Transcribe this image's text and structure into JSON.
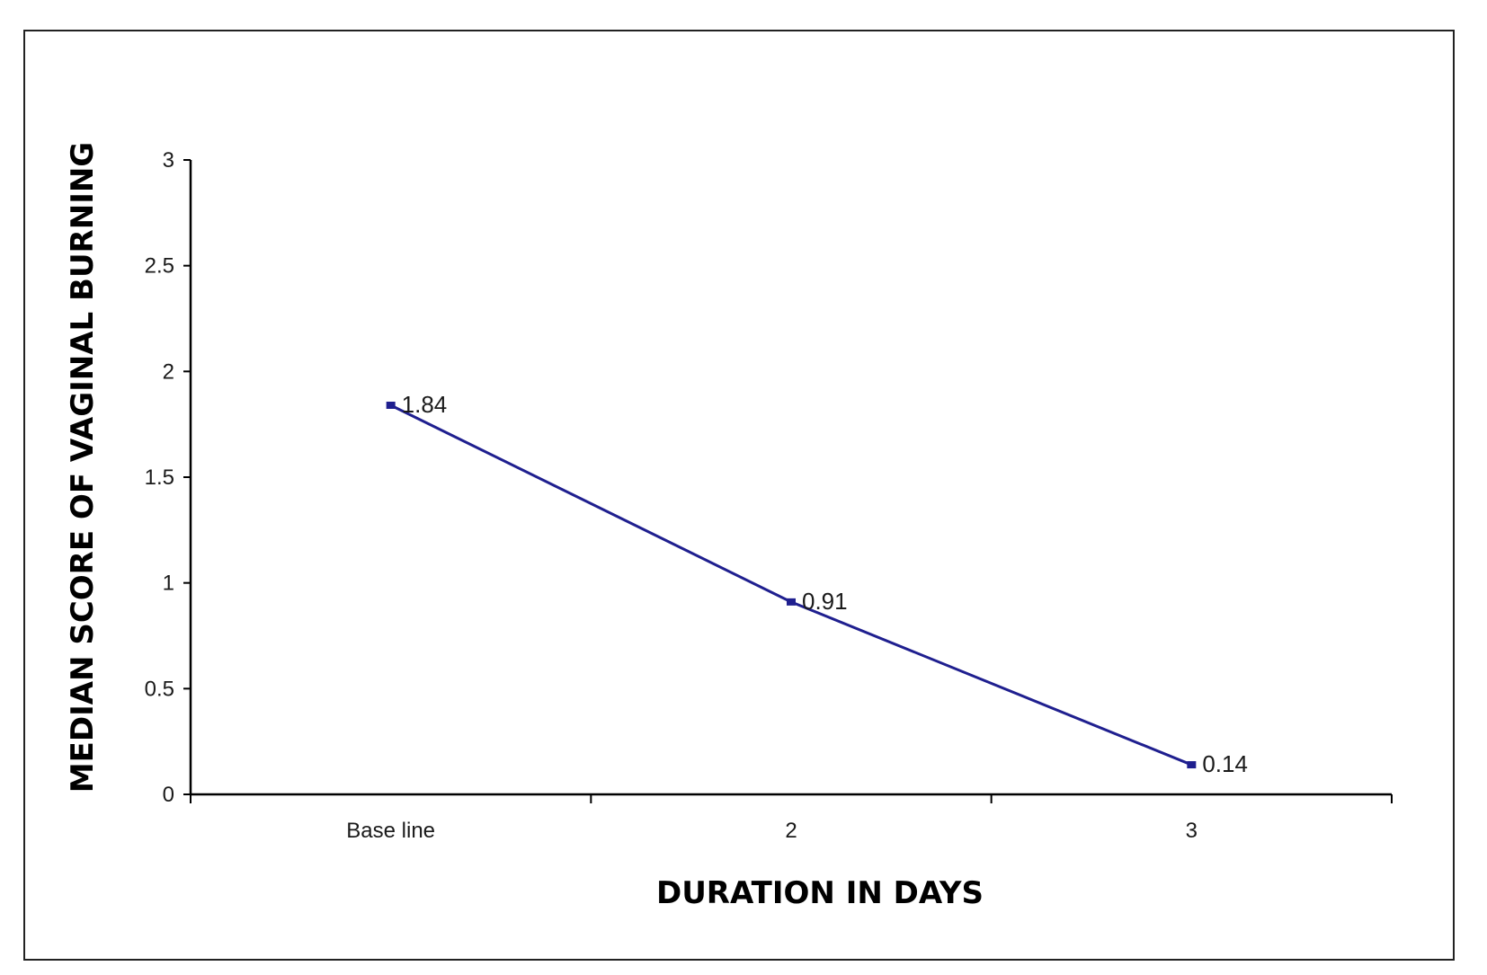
{
  "chart_data": {
    "type": "line",
    "title": "",
    "xlabel": "DURATION IN DAYS",
    "ylabel": "MEDIAN SCORE OF VAGINAL BURNING",
    "categories": [
      "Base line",
      "2",
      "3"
    ],
    "series": [
      {
        "values": [
          1.84,
          0.91,
          0.14
        ],
        "labels": [
          "1.84",
          "0.91",
          "0.14"
        ],
        "color": "#1f1f8f"
      }
    ],
    "ylim": [
      0,
      3
    ],
    "yticks": [
      0,
      0.5,
      1,
      1.5,
      2,
      2.5,
      3
    ],
    "ytick_labels": [
      "0",
      "0.5",
      "1",
      "1.5",
      "2",
      "2.5",
      "3"
    ],
    "grid": false,
    "legend": "none"
  }
}
